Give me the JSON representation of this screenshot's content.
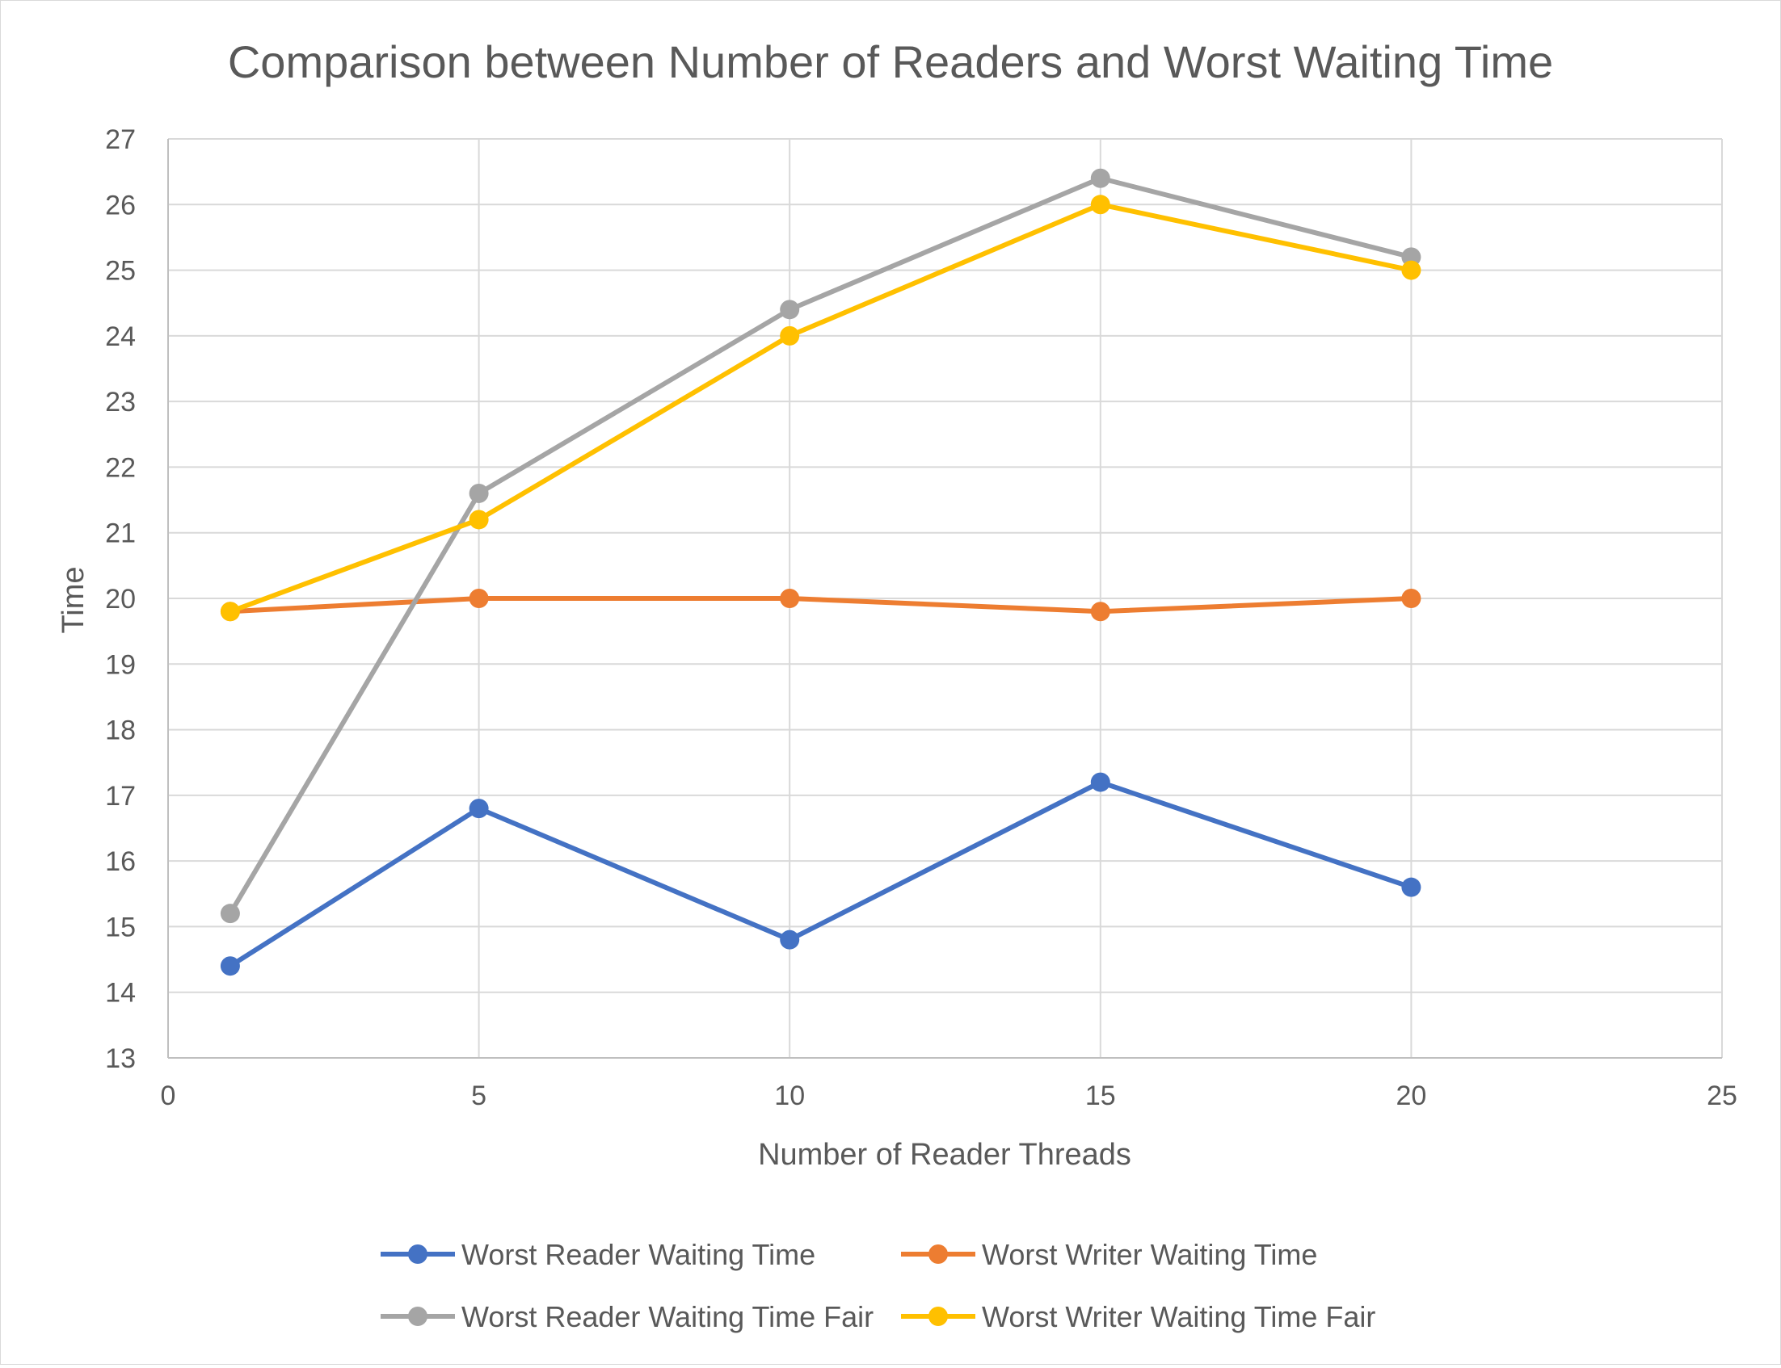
{
  "chart_data": {
    "type": "line",
    "title": "Comparison between Number of Readers and Worst Waiting Time",
    "xlabel": "Number of Reader Threads",
    "ylabel": "Time",
    "xlim": [
      0,
      25
    ],
    "ylim": [
      13,
      27
    ],
    "x_ticks": [
      "0",
      "5",
      "10",
      "15",
      "20",
      "25"
    ],
    "y_ticks": [
      "13",
      "14",
      "15",
      "16",
      "17",
      "18",
      "19",
      "20",
      "21",
      "22",
      "23",
      "24",
      "25",
      "26",
      "27"
    ],
    "grid": true,
    "legend_position": "bottom",
    "x": [
      1,
      5,
      10,
      15,
      20
    ],
    "series": [
      {
        "name": "Worst Reader Waiting Time",
        "color": "#4472C4",
        "values": [
          14.4,
          16.8,
          14.8,
          17.2,
          15.6
        ]
      },
      {
        "name": "Worst Writer Waiting Time",
        "color": "#ED7D31",
        "values": [
          19.8,
          20.0,
          20.0,
          19.8,
          20.0
        ]
      },
      {
        "name": "Worst Reader Waiting Time Fair",
        "color": "#A5A5A5",
        "values": [
          15.2,
          21.6,
          24.4,
          26.4,
          25.2
        ]
      },
      {
        "name": "Worst Writer Waiting Time Fair",
        "color": "#FFC000",
        "values": [
          19.8,
          21.2,
          24.0,
          26.0,
          25.0
        ]
      }
    ]
  }
}
